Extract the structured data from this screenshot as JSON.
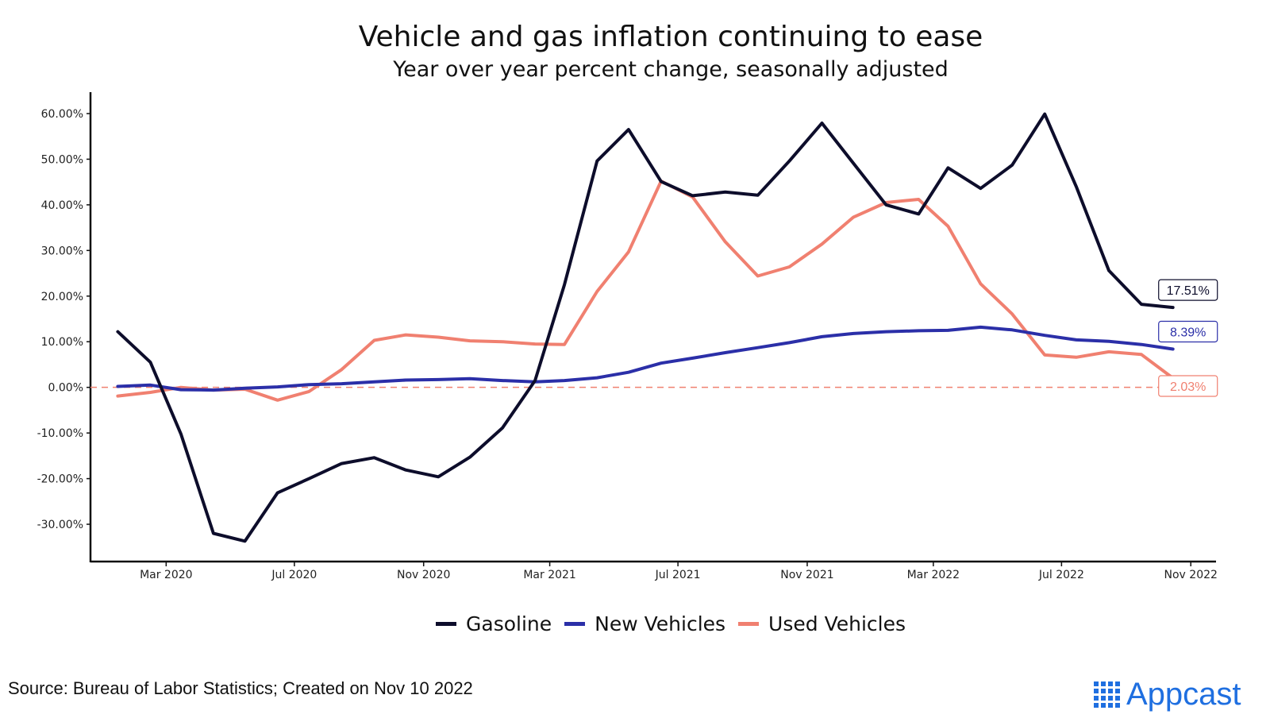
{
  "title": "Vehicle and gas inflation continuing to ease",
  "subtitle": "Year over year percent change, seasonally adjusted",
  "source": "Source: Bureau of Labor Statistics; Created on Nov 10 2022",
  "logo": {
    "text": "Appcast",
    "color": "#1f6fe0"
  },
  "colors": {
    "zero_line": "#f08070"
  },
  "chart_data": {
    "type": "line",
    "title": "Vehicle and gas inflation continuing to ease",
    "subtitle": "Year over year percent change, seasonally adjusted",
    "x": [
      "2020-01",
      "2020-02",
      "2020-03",
      "2020-04",
      "2020-05",
      "2020-06",
      "2020-07",
      "2020-08",
      "2020-09",
      "2020-10",
      "2020-11",
      "2020-12",
      "2021-01",
      "2021-02",
      "2021-03",
      "2021-04",
      "2021-05",
      "2021-06",
      "2021-07",
      "2021-08",
      "2021-09",
      "2021-10",
      "2021-11",
      "2021-12",
      "2022-01",
      "2022-02",
      "2022-03",
      "2022-04",
      "2022-05",
      "2022-06",
      "2022-07",
      "2022-08",
      "2022-09",
      "2022-10"
    ],
    "x_ticks": [
      {
        "date": "2020-03",
        "label": "Mar 2020"
      },
      {
        "date": "2020-07",
        "label": "Jul 2020"
      },
      {
        "date": "2020-11",
        "label": "Nov 2020"
      },
      {
        "date": "2021-03",
        "label": "Mar 2021"
      },
      {
        "date": "2021-07",
        "label": "Jul 2021"
      },
      {
        "date": "2021-11",
        "label": "Nov 2021"
      },
      {
        "date": "2022-03",
        "label": "Mar 2022"
      },
      {
        "date": "2022-07",
        "label": "Jul 2022"
      },
      {
        "date": "2022-11",
        "label": "Nov 2022"
      }
    ],
    "y_ticks": [
      {
        "value": 60,
        "label": "60.00%"
      },
      {
        "value": 50,
        "label": "50.00%"
      },
      {
        "value": 40,
        "label": "40.00%"
      },
      {
        "value": 30,
        "label": "30.00%"
      },
      {
        "value": 20,
        "label": "20.00%"
      },
      {
        "value": 10,
        "label": "10.00%"
      },
      {
        "value": 0,
        "label": "0.00%"
      },
      {
        "value": -10,
        "label": "-10.00%"
      },
      {
        "value": -20,
        "label": "-20.00%"
      },
      {
        "value": -30,
        "label": "-30.00%"
      }
    ],
    "xlim": [
      "2019-12-20",
      "2022-11-25"
    ],
    "ylim": [
      -38,
      64
    ],
    "grid": false,
    "legend": "bottom",
    "reference_line": {
      "value": 0,
      "style": "dashed",
      "color": "#f08070"
    },
    "series": [
      {
        "name": "Gasoline",
        "color": "#0d0d2b",
        "values": [
          12.2,
          5.5,
          -10.2,
          -32.0,
          -33.7,
          -23.1,
          -20.0,
          -16.7,
          -15.4,
          -18.1,
          -19.6,
          -15.3,
          -8.9,
          1.5,
          22.5,
          49.6,
          56.5,
          45.1,
          42.0,
          42.8,
          42.1,
          49.6,
          57.9,
          49.1,
          40.0,
          38.0,
          48.1,
          43.6,
          48.7,
          59.9,
          44.0,
          25.6,
          18.2,
          17.51
        ],
        "end_label": "17.51%"
      },
      {
        "name": "New Vehicles",
        "color": "#2b2fa8",
        "values": [
          0.2,
          0.5,
          -0.5,
          -0.6,
          -0.2,
          0.1,
          0.6,
          0.8,
          1.2,
          1.6,
          1.7,
          1.9,
          1.5,
          1.2,
          1.5,
          2.1,
          3.3,
          5.3,
          6.4,
          7.6,
          8.7,
          9.8,
          11.1,
          11.8,
          12.2,
          12.4,
          12.5,
          13.2,
          12.6,
          11.4,
          10.4,
          10.1,
          9.4,
          8.39
        ],
        "end_label": "8.39%"
      },
      {
        "name": "Used Vehicles",
        "color": "#f08070",
        "values": [
          -1.9,
          -1.1,
          0.0,
          -0.6,
          -0.4,
          -2.8,
          -0.9,
          3.9,
          10.3,
          11.5,
          11.0,
          10.2,
          10.0,
          9.5,
          9.4,
          21.0,
          29.7,
          45.2,
          41.7,
          31.9,
          24.4,
          26.4,
          31.4,
          37.3,
          40.5,
          41.2,
          35.3,
          22.7,
          16.1,
          7.1,
          6.6,
          7.8,
          7.2,
          2.03
        ],
        "end_label": "2.03%"
      }
    ]
  }
}
